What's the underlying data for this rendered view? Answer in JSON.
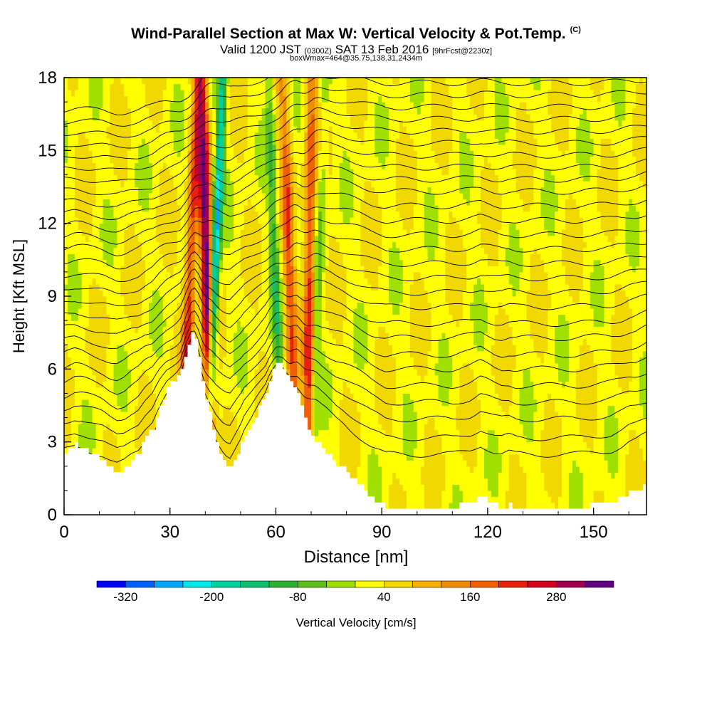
{
  "header": {
    "title": "Wind-Parallel Section at Max W: Vertical Velocity & Pot.Temp.",
    "copyright": "(C)",
    "valid_prefix": "Valid 1200 JST",
    "valid_zulu": "(0300Z)",
    "valid_date": "SAT 13 Feb 2016",
    "forecast": "[9hrFcst@2230z]",
    "box_info": "boxWmax=464@35.75,138.31,2434m"
  },
  "chart_data": {
    "type": "heatmap",
    "xlabel": "Distance [nm]",
    "ylabel": "Height [Kft MSL]",
    "xlim": [
      0,
      165
    ],
    "ylim": [
      0,
      18
    ],
    "x_ticks": [
      0,
      30,
      60,
      90,
      120,
      150
    ],
    "y_ticks": [
      0,
      3,
      6,
      9,
      12,
      15,
      18
    ],
    "grid": false,
    "colorbar": {
      "label": "Vertical Velocity [cm/s]",
      "tick_labels": [
        "-320",
        "-200",
        "-80",
        "40",
        "160",
        "280"
      ],
      "tick_values": [
        -320,
        -200,
        -80,
        40,
        160,
        280
      ],
      "levels": [
        -360,
        -320,
        -280,
        -240,
        -200,
        -160,
        -120,
        -80,
        -40,
        0,
        40,
        80,
        120,
        160,
        200,
        240,
        280,
        320,
        360
      ],
      "colors": [
        "#0000ff",
        "#0060ff",
        "#00a8ff",
        "#00e8e8",
        "#00d0a0",
        "#10c070",
        "#30b030",
        "#60c020",
        "#a0e000",
        "#ffff00",
        "#f0d800",
        "#f8b000",
        "#f08c00",
        "#f06000",
        "#e82010",
        "#d00020",
        "#a00050",
        "#600080"
      ],
      "legend_position": "bottom"
    },
    "terrain_profile": {
      "x": [
        0,
        3,
        5,
        8,
        11,
        13,
        15,
        17,
        19,
        21,
        23,
        25,
        27,
        29,
        31,
        33,
        34,
        35,
        36,
        37,
        38,
        39,
        40,
        41,
        42,
        43,
        44,
        45,
        46,
        47,
        48,
        49,
        50,
        51,
        53,
        55,
        57,
        58,
        59,
        60,
        61,
        62,
        63,
        64,
        65,
        66,
        67,
        68,
        69,
        70,
        71,
        72,
        73,
        75,
        77,
        79,
        81,
        83,
        85,
        87,
        89,
        91,
        95,
        100,
        105,
        110,
        115,
        118,
        120,
        122,
        124,
        126,
        128,
        130,
        135,
        140,
        145,
        150,
        155,
        158,
        160,
        162,
        165
      ],
      "height": [
        2.6,
        2.9,
        2.8,
        2.5,
        2.2,
        1.9,
        1.7,
        1.9,
        2.3,
        2.6,
        3.2,
        3.6,
        4.5,
        5.2,
        5.6,
        6.0,
        6.6,
        7.0,
        7.4,
        7.3,
        6.6,
        5.6,
        4.8,
        4.2,
        3.6,
        3.0,
        2.6,
        2.3,
        2.1,
        2.0,
        2.3,
        2.6,
        2.9,
        3.3,
        3.8,
        4.4,
        5.0,
        5.5,
        5.9,
        6.2,
        6.2,
        6.1,
        5.8,
        5.5,
        5.3,
        5.0,
        4.5,
        4.0,
        3.6,
        3.3,
        3.1,
        2.9,
        2.7,
        2.4,
        2.1,
        1.9,
        1.6,
        1.3,
        1.0,
        0.7,
        0.5,
        0.3,
        0.3,
        0.3,
        0.3,
        0.3,
        0.5,
        0.8,
        0.6,
        0.4,
        0.3,
        0.4,
        0.3,
        0.3,
        0.3,
        0.3,
        0.3,
        0.4,
        0.5,
        0.7,
        0.9,
        1.0,
        1.3
      ]
    },
    "updraft_bands": [
      {
        "x_base": 33,
        "x_top": 38,
        "peak_w": 200
      },
      {
        "x_base": 42,
        "x_top": 39,
        "peak_w": 320
      },
      {
        "x_base": 66,
        "x_top": 62,
        "peak_w": 160
      },
      {
        "x_base": 69,
        "x_top": 70,
        "peak_w": 200
      }
    ],
    "downdraft_bands": [
      {
        "x_base": 40,
        "x_top": 45,
        "min_w": -280
      },
      {
        "x_base": 62,
        "x_top": 58,
        "min_w": -120
      },
      {
        "x_base": 70,
        "x_top": 74,
        "min_w": -80
      }
    ],
    "isentrope_base_heights": [
      0.8,
      1.5,
      2.3,
      3.0,
      3.7,
      4.4,
      5.0,
      5.7,
      6.3,
      7.0,
      7.6,
      8.2,
      8.8,
      9.4,
      10.0,
      10.6,
      11.2,
      11.8,
      12.3,
      12.8,
      13.3,
      13.8,
      14.3,
      14.8,
      15.3,
      15.8,
      16.3,
      16.8,
      17.3,
      17.8
    ]
  }
}
